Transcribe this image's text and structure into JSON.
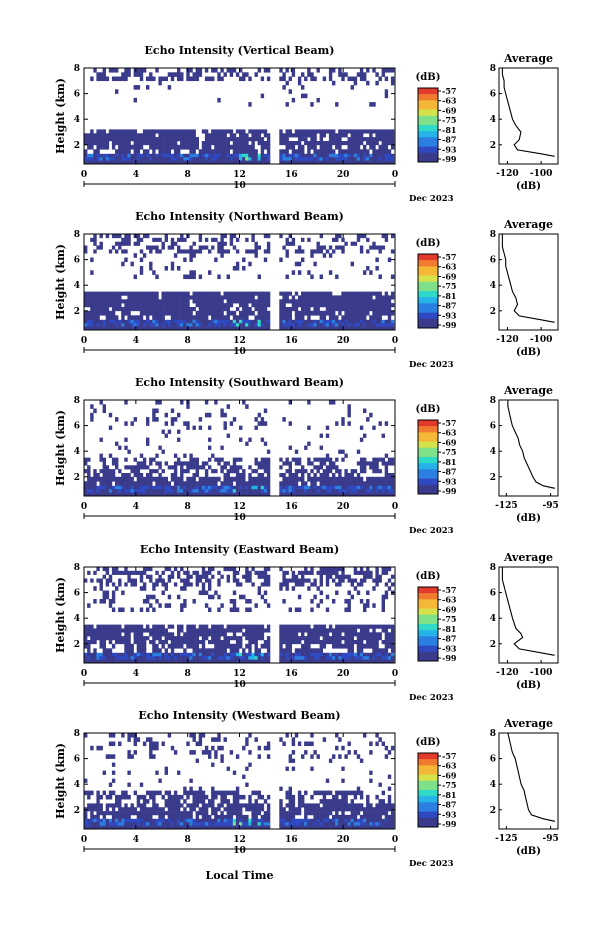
{
  "figure": {
    "xlabel": "Local Time",
    "date_label": "Dec 2023",
    "day_label": "10",
    "colorbar_unit": "(dB)",
    "colorbar_ticks": [
      "-57",
      "-63",
      "-69",
      "-75",
      "-81",
      "-87",
      "-93",
      "-99"
    ],
    "average_title": "Average",
    "average_xlabel": "(dB)",
    "colors": {
      "colormap": [
        "#3b3b8c",
        "#2f49c2",
        "#2a7fe0",
        "#25b3e8",
        "#2ed9c8",
        "#7fe08a",
        "#d6e24a",
        "#f4b736",
        "#f07a2e",
        "#e23a2a"
      ],
      "line": "#000000"
    }
  },
  "chart_data": [
    {
      "type": "heatmap",
      "title": "Echo Intensity (Vertical Beam)",
      "ylabel": "Height (km)",
      "x_ticks": [
        "0",
        "4",
        "8",
        "12",
        "16",
        "20",
        "0"
      ],
      "y_ticks": [
        "2",
        "4",
        "6",
        "8"
      ],
      "xlim": [
        0,
        24
      ],
      "ylim": [
        0.5,
        8
      ],
      "colorbar_range_db": [
        -99,
        -57
      ],
      "bands": [
        {
          "y": [
            7.0,
            8.0
          ],
          "coverage": 0.45
        },
        {
          "y": [
            5.0,
            7.0
          ],
          "coverage": 0.06
        },
        {
          "y": [
            2.0,
            3.2
          ],
          "coverage": 0.9
        },
        {
          "y": [
            1.3,
            2.0
          ],
          "coverage": 0.75
        },
        {
          "y": [
            0.5,
            1.3
          ],
          "coverage": 1.0,
          "strong": true
        }
      ],
      "gap_hours": [
        14.4,
        15.2
      ],
      "average": {
        "title": "Average",
        "xlabel": "(dB)",
        "x_ticks": [
          "-120",
          "-100"
        ],
        "xlim": [
          -125,
          -90
        ],
        "y_ticks": [
          "2",
          "4",
          "6",
          "8"
        ],
        "ylim": [
          0.5,
          8
        ],
        "height_km": [
          1.1,
          1.3,
          1.6,
          2.0,
          2.4,
          3.0,
          3.5,
          4.0,
          4.5,
          5.0,
          5.5,
          6.0,
          6.5,
          7.0,
          7.5,
          8.0
        ],
        "db": [
          -92,
          -100,
          -114,
          -116,
          -113,
          -112,
          -115,
          -117,
          -118,
          -119,
          -120,
          -121,
          -122,
          -122,
          -123,
          -123
        ]
      }
    },
    {
      "type": "heatmap",
      "title": "Echo Intensity (Northward Beam)",
      "ylabel": "Height (km)",
      "x_ticks": [
        "0",
        "4",
        "8",
        "12",
        "16",
        "20",
        "0"
      ],
      "y_ticks": [
        "2",
        "4",
        "6",
        "8"
      ],
      "xlim": [
        0,
        24
      ],
      "ylim": [
        0.5,
        8
      ],
      "colorbar_range_db": [
        -99,
        -57
      ],
      "bands": [
        {
          "y": [
            6.5,
            8.0
          ],
          "coverage": 0.35
        },
        {
          "y": [
            4.5,
            6.5
          ],
          "coverage": 0.12
        },
        {
          "y": [
            2.0,
            3.5
          ],
          "coverage": 0.9
        },
        {
          "y": [
            1.3,
            2.0
          ],
          "coverage": 0.8
        },
        {
          "y": [
            0.5,
            1.3
          ],
          "coverage": 1.0,
          "strong": true
        }
      ],
      "gap_hours": [
        14.4,
        15.2
      ],
      "average": {
        "title": "Average",
        "xlabel": "(dB)",
        "x_ticks": [
          "-120",
          "-100"
        ],
        "xlim": [
          -125,
          -90
        ],
        "y_ticks": [
          "2",
          "4",
          "6",
          "8"
        ],
        "ylim": [
          0.5,
          8
        ],
        "height_km": [
          1.1,
          1.3,
          1.6,
          2.0,
          2.5,
          3.0,
          3.5,
          4.0,
          4.5,
          5.0,
          5.5,
          6.0,
          6.5,
          7.0,
          7.5,
          8.0
        ],
        "db": [
          -92,
          -100,
          -113,
          -116,
          -114,
          -115,
          -117,
          -118,
          -119,
          -120,
          -121,
          -121,
          -122,
          -123,
          -123,
          -123
        ]
      }
    },
    {
      "type": "heatmap",
      "title": "Echo Intensity (Southward Beam)",
      "ylabel": "Height (km)",
      "x_ticks": [
        "0",
        "4",
        "8",
        "12",
        "16",
        "20",
        "0"
      ],
      "y_ticks": [
        "2",
        "4",
        "6",
        "8"
      ],
      "xlim": [
        0,
        24
      ],
      "ylim": [
        0.5,
        8
      ],
      "colorbar_range_db": [
        -99,
        -57
      ],
      "bands": [
        {
          "y": [
            6.0,
            8.0
          ],
          "coverage": 0.12
        },
        {
          "y": [
            3.5,
            6.0
          ],
          "coverage": 0.06
        },
        {
          "y": [
            2.0,
            3.5
          ],
          "coverage": 0.55
        },
        {
          "y": [
            1.3,
            2.0
          ],
          "coverage": 0.9
        },
        {
          "y": [
            0.5,
            1.3
          ],
          "coverage": 1.0,
          "strong": true
        }
      ],
      "gap_hours": [
        14.4,
        15.2
      ],
      "average": {
        "title": "Average",
        "xlabel": "(dB)",
        "x_ticks": [
          "-125",
          "-95"
        ],
        "xlim": [
          -130,
          -90
        ],
        "y_ticks": [
          "2",
          "4",
          "6",
          "8"
        ],
        "ylim": [
          0.5,
          8
        ],
        "height_km": [
          1.1,
          1.3,
          1.6,
          2.0,
          2.5,
          3.0,
          3.5,
          4.0,
          4.5,
          5.0,
          5.5,
          6.0,
          6.5,
          7.0,
          7.5,
          8.0
        ],
        "db": [
          -92,
          -100,
          -105,
          -107,
          -109,
          -111,
          -113,
          -114,
          -116,
          -117,
          -119,
          -121,
          -122,
          -123,
          -124,
          -124
        ]
      }
    },
    {
      "type": "heatmap",
      "title": "Echo Intensity (Eastward Beam)",
      "ylabel": "Height (km)",
      "x_ticks": [
        "0",
        "4",
        "8",
        "12",
        "16",
        "20",
        "0"
      ],
      "y_ticks": [
        "2",
        "4",
        "6",
        "8"
      ],
      "xlim": [
        0,
        24
      ],
      "ylim": [
        0.5,
        8
      ],
      "colorbar_range_db": [
        -99,
        -57
      ],
      "bands": [
        {
          "y": [
            6.5,
            8.0
          ],
          "coverage": 0.5
        },
        {
          "y": [
            4.5,
            6.5
          ],
          "coverage": 0.2
        },
        {
          "y": [
            2.0,
            3.5
          ],
          "coverage": 0.85
        },
        {
          "y": [
            1.3,
            2.0
          ],
          "coverage": 0.6
        },
        {
          "y": [
            0.5,
            1.3
          ],
          "coverage": 1.0,
          "strong": true
        }
      ],
      "gap_hours": [
        14.4,
        15.2
      ],
      "average": {
        "title": "Average",
        "xlabel": "(dB)",
        "x_ticks": [
          "-120",
          "-100"
        ],
        "xlim": [
          -125,
          -90
        ],
        "y_ticks": [
          "2",
          "4",
          "6",
          "8"
        ],
        "ylim": [
          0.5,
          8
        ],
        "height_km": [
          1.1,
          1.3,
          1.6,
          2.0,
          2.5,
          2.8,
          3.2,
          3.6,
          4.0,
          4.5,
          5.0,
          5.5,
          6.0,
          6.5,
          7.0,
          8.0
        ],
        "db": [
          -92,
          -100,
          -113,
          -116,
          -111,
          -112,
          -115,
          -116,
          -117,
          -118,
          -119,
          -120,
          -121,
          -122,
          -123,
          -123
        ]
      }
    },
    {
      "type": "heatmap",
      "title": "Echo Intensity (Westward Beam)",
      "ylabel": "Height (km)",
      "x_ticks": [
        "0",
        "4",
        "8",
        "12",
        "16",
        "20",
        "0"
      ],
      "y_ticks": [
        "2",
        "4",
        "6",
        "8"
      ],
      "xlim": [
        0,
        24
      ],
      "ylim": [
        0.5,
        8
      ],
      "colorbar_range_db": [
        -99,
        -57
      ],
      "bands": [
        {
          "y": [
            6.0,
            8.0
          ],
          "coverage": 0.2
        },
        {
          "y": [
            3.5,
            6.0
          ],
          "coverage": 0.05
        },
        {
          "y": [
            2.5,
            3.5
          ],
          "coverage": 0.5
        },
        {
          "y": [
            1.3,
            2.5
          ],
          "coverage": 0.8
        },
        {
          "y": [
            0.5,
            1.3
          ],
          "coverage": 1.0,
          "strong": true
        }
      ],
      "gap_hours": [
        14.4,
        15.2
      ],
      "average": {
        "title": "Average",
        "xlabel": "(dB)",
        "x_ticks": [
          "-125",
          "-95"
        ],
        "xlim": [
          -130,
          -90
        ],
        "y_ticks": [
          "2",
          "4",
          "6",
          "8"
        ],
        "ylim": [
          0.5,
          8
        ],
        "height_km": [
          1.1,
          1.3,
          1.6,
          2.0,
          2.5,
          3.0,
          3.5,
          4.0,
          4.5,
          5.0,
          5.5,
          6.0,
          6.5,
          7.0,
          7.5,
          8.0
        ],
        "db": [
          -92,
          -100,
          -108,
          -110,
          -111,
          -112,
          -113,
          -115,
          -116,
          -117,
          -118,
          -119,
          -121,
          -122,
          -123,
          -124
        ]
      }
    }
  ]
}
